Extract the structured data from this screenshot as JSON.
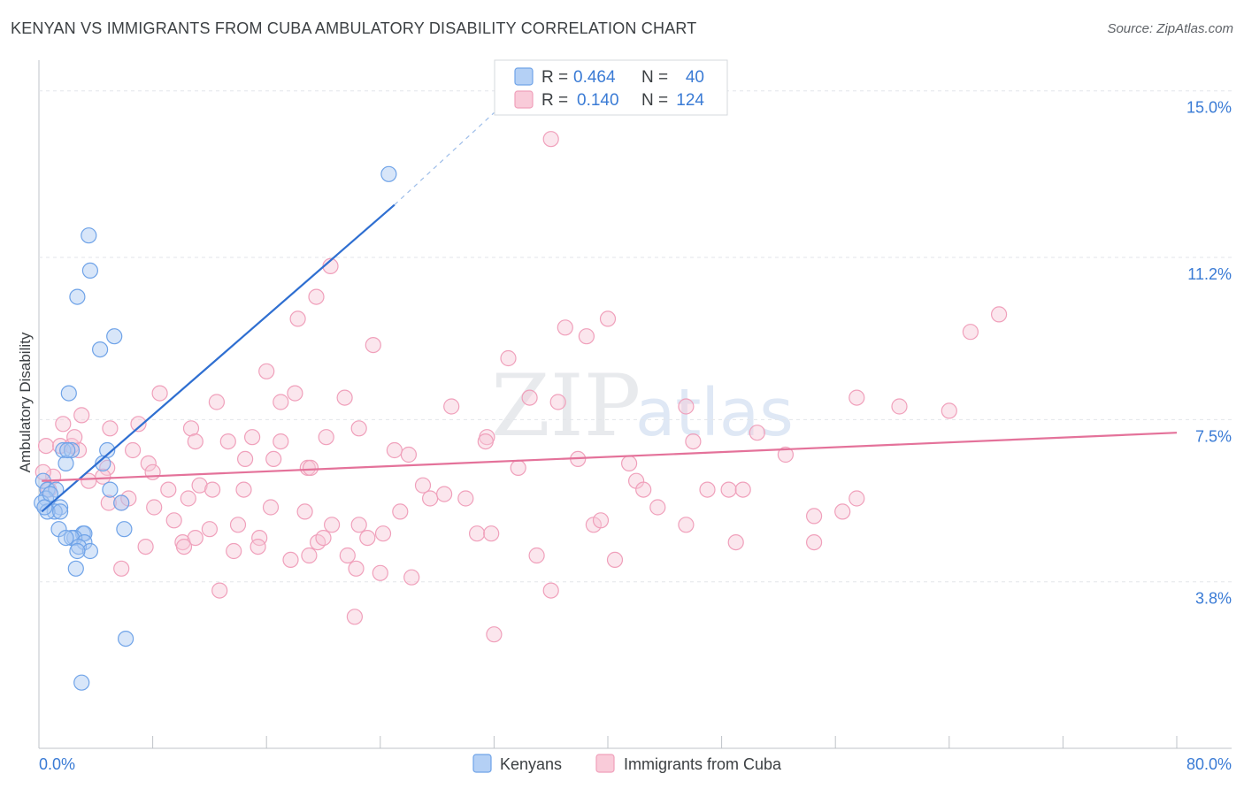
{
  "title": "KENYAN VS IMMIGRANTS FROM CUBA AMBULATORY DISABILITY CORRELATION CHART",
  "source": "Source: ZipAtlas.com",
  "watermark": {
    "zip": "ZIP",
    "atlas": "atlas"
  },
  "chart_data": {
    "type": "scatter",
    "ylabel": "Ambulatory Disability",
    "xlim": [
      0,
      80
    ],
    "ylim": [
      0,
      15.7
    ],
    "x_tick_labels": {
      "left": "0.0%",
      "right": "80.0%"
    },
    "y_ticks": [
      {
        "value": 3.8,
        "label": "3.8%"
      },
      {
        "value": 7.5,
        "label": "7.5%"
      },
      {
        "value": 11.2,
        "label": "11.2%"
      },
      {
        "value": 15.0,
        "label": "15.0%"
      }
    ],
    "legend": {
      "rows": [
        {
          "r_label": "R = ",
          "r_value": "0.464",
          "n_label": "N = ",
          "n_value": "40"
        },
        {
          "r_label": "R = ",
          "r_value": "0.140",
          "n_label": "N = ",
          "n_value": "124"
        }
      ]
    },
    "series": [
      {
        "name": "Kenyans",
        "color": "#6fa3e8",
        "fill": "#a9c8f2",
        "trend": {
          "x0": 0.2,
          "y0": 5.4,
          "x1": 25.0,
          "y1": 12.4,
          "dash_x1": 32.0,
          "dash_y1": 14.5,
          "color": "#2f6fd1"
        },
        "points": [
          [
            24.6,
            13.1
          ],
          [
            3.5,
            11.7
          ],
          [
            3.6,
            10.9
          ],
          [
            2.7,
            10.3
          ],
          [
            5.3,
            9.4
          ],
          [
            4.3,
            9.1
          ],
          [
            2.1,
            8.1
          ],
          [
            1.7,
            6.8
          ],
          [
            4.8,
            6.8
          ],
          [
            2.3,
            6.8
          ],
          [
            1.9,
            6.5
          ],
          [
            4.5,
            6.5
          ],
          [
            0.3,
            6.1
          ],
          [
            0.6,
            5.9
          ],
          [
            1.2,
            5.9
          ],
          [
            5.0,
            5.9
          ],
          [
            0.5,
            5.7
          ],
          [
            0.2,
            5.6
          ],
          [
            1.5,
            5.5
          ],
          [
            1.1,
            5.4
          ],
          [
            0.6,
            5.4
          ],
          [
            5.8,
            5.6
          ],
          [
            1.4,
            5.0
          ],
          [
            3.1,
            4.9
          ],
          [
            3.2,
            4.9
          ],
          [
            2.5,
            4.8
          ],
          [
            2.3,
            4.8
          ],
          [
            3.2,
            4.7
          ],
          [
            2.8,
            4.6
          ],
          [
            3.6,
            4.5
          ],
          [
            2.7,
            4.5
          ],
          [
            6.0,
            5.0
          ],
          [
            2.6,
            4.1
          ],
          [
            6.1,
            2.5
          ],
          [
            3.0,
            1.5
          ],
          [
            0.8,
            5.8
          ],
          [
            1.9,
            4.8
          ],
          [
            0.4,
            5.5
          ],
          [
            2.0,
            6.8
          ],
          [
            1.5,
            5.4
          ]
        ]
      },
      {
        "name": "Immigrants from Cuba",
        "color": "#f0a0bb",
        "fill": "#f7c8d7",
        "trend": {
          "x0": 0.2,
          "y0": 6.1,
          "x1": 80.0,
          "y1": 7.2,
          "color": "#e4729a"
        },
        "points": [
          [
            36.0,
            13.9
          ],
          [
            20.5,
            11.0
          ],
          [
            19.5,
            10.3
          ],
          [
            18.2,
            9.8
          ],
          [
            37.0,
            9.6
          ],
          [
            40.0,
            9.8
          ],
          [
            38.5,
            9.4
          ],
          [
            23.5,
            9.2
          ],
          [
            33.0,
            8.9
          ],
          [
            67.5,
            9.9
          ],
          [
            65.5,
            9.5
          ],
          [
            16.0,
            8.6
          ],
          [
            8.5,
            8.1
          ],
          [
            12.5,
            7.9
          ],
          [
            17.0,
            7.9
          ],
          [
            18.0,
            8.1
          ],
          [
            21.5,
            8.0
          ],
          [
            29.0,
            7.8
          ],
          [
            34.5,
            8.0
          ],
          [
            36.5,
            7.9
          ],
          [
            45.5,
            7.8
          ],
          [
            57.5,
            8.0
          ],
          [
            60.5,
            7.8
          ],
          [
            64.0,
            7.7
          ],
          [
            3.0,
            7.6
          ],
          [
            1.7,
            7.4
          ],
          [
            5.0,
            7.3
          ],
          [
            7.0,
            7.4
          ],
          [
            10.7,
            7.3
          ],
          [
            13.3,
            7.0
          ],
          [
            15.0,
            7.1
          ],
          [
            17.0,
            7.0
          ],
          [
            20.2,
            7.1
          ],
          [
            22.5,
            7.3
          ],
          [
            31.5,
            7.1
          ],
          [
            31.4,
            7.0
          ],
          [
            46.0,
            7.0
          ],
          [
            50.5,
            7.2
          ],
          [
            11.0,
            7.0
          ],
          [
            0.5,
            6.9
          ],
          [
            1.5,
            6.9
          ],
          [
            2.3,
            6.9
          ],
          [
            2.8,
            6.8
          ],
          [
            6.6,
            6.8
          ],
          [
            1.0,
            6.2
          ],
          [
            0.3,
            6.3
          ],
          [
            3.5,
            6.1
          ],
          [
            4.8,
            6.4
          ],
          [
            5.8,
            5.6
          ],
          [
            7.7,
            6.5
          ],
          [
            8.0,
            6.3
          ],
          [
            9.1,
            5.9
          ],
          [
            10.5,
            5.7
          ],
          [
            11.3,
            6.0
          ],
          [
            12.2,
            5.9
          ],
          [
            14.5,
            6.6
          ],
          [
            16.5,
            6.6
          ],
          [
            18.9,
            6.4
          ],
          [
            19.1,
            6.4
          ],
          [
            25.0,
            6.8
          ],
          [
            26.0,
            6.7
          ],
          [
            33.7,
            6.4
          ],
          [
            37.9,
            6.6
          ],
          [
            41.5,
            6.5
          ],
          [
            42.0,
            6.1
          ],
          [
            42.5,
            5.9
          ],
          [
            47.0,
            5.9
          ],
          [
            48.5,
            5.9
          ],
          [
            52.5,
            6.7
          ],
          [
            0.7,
            5.9
          ],
          [
            4.5,
            6.2
          ],
          [
            6.3,
            5.7
          ],
          [
            8.1,
            5.5
          ],
          [
            9.5,
            5.2
          ],
          [
            10.1,
            4.7
          ],
          [
            12.0,
            5.0
          ],
          [
            11.0,
            4.8
          ],
          [
            14.0,
            5.1
          ],
          [
            15.5,
            4.8
          ],
          [
            16.3,
            5.5
          ],
          [
            17.7,
            4.3
          ],
          [
            18.7,
            5.4
          ],
          [
            19.6,
            4.7
          ],
          [
            20.6,
            5.1
          ],
          [
            21.7,
            4.4
          ],
          [
            22.5,
            5.1
          ],
          [
            23.1,
            4.8
          ],
          [
            24.2,
            4.9
          ],
          [
            25.4,
            5.4
          ],
          [
            27.0,
            6.0
          ],
          [
            27.5,
            5.7
          ],
          [
            28.5,
            5.8
          ],
          [
            30.0,
            5.7
          ],
          [
            30.8,
            4.9
          ],
          [
            31.8,
            4.9
          ],
          [
            39.0,
            5.1
          ],
          [
            39.5,
            5.2
          ],
          [
            45.5,
            5.1
          ],
          [
            49.0,
            4.7
          ],
          [
            49.5,
            5.9
          ],
          [
            54.5,
            5.3
          ],
          [
            56.5,
            5.4
          ],
          [
            57.5,
            5.7
          ],
          [
            54.5,
            4.7
          ],
          [
            7.5,
            4.6
          ],
          [
            10.2,
            4.6
          ],
          [
            12.7,
            3.6
          ],
          [
            13.7,
            4.5
          ],
          [
            15.4,
            4.6
          ],
          [
            19.0,
            4.4
          ],
          [
            22.3,
            4.1
          ],
          [
            24.0,
            4.0
          ],
          [
            26.2,
            3.9
          ],
          [
            35.0,
            4.4
          ],
          [
            36.0,
            3.6
          ],
          [
            40.5,
            4.3
          ],
          [
            5.8,
            4.1
          ],
          [
            22.2,
            3.0
          ],
          [
            32.0,
            2.6
          ],
          [
            4.9,
            5.6
          ],
          [
            43.5,
            5.5
          ],
          [
            14.4,
            5.9
          ],
          [
            2.5,
            7.1
          ],
          [
            20.0,
            4.8
          ]
        ]
      }
    ]
  }
}
